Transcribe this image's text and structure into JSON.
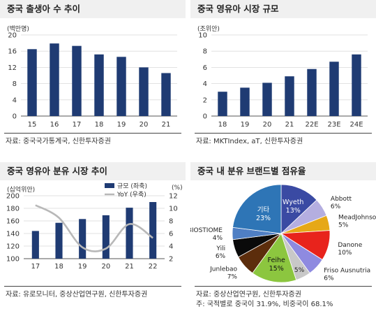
{
  "panels": {
    "births": {
      "title": "중국 출생아 수 추이",
      "unit": "(백만명)",
      "source": "자료: 중국국가통계국, 신한투자증권"
    },
    "formula_market": {
      "title": "중국 영유아 시장 규모",
      "unit": "(조위안)",
      "source": "자료: MKTIndex, aT, 신한투자증권"
    },
    "powder_market": {
      "title": "중국 영유아 분유 시장 추이",
      "unit_left": "(십억위안)",
      "unit_right": "(%)",
      "legend_bar": "규모 (좌축)",
      "legend_line": "YoY (우축)",
      "source": "자료: 유로모니터, 중상산업연구원, 신한투자증권"
    },
    "brand_share": {
      "title": "중국 내 분유 브랜드별 점유율",
      "source": "자료: 중상산업연구원, 신한투자증권",
      "note": "주: 국적별로 중국이 31.9%, 비중국이 68.1%"
    }
  },
  "chart_data": [
    {
      "type": "bar",
      "id": "births",
      "categories": [
        "15",
        "16",
        "17",
        "18",
        "19",
        "20",
        "21"
      ],
      "values": [
        16.5,
        17.9,
        17.3,
        15.2,
        14.6,
        12.0,
        10.6
      ],
      "ylim": [
        0,
        20
      ],
      "yticks": [
        0,
        4,
        8,
        12,
        16,
        20
      ],
      "color": "#1f3b73"
    },
    {
      "type": "bar",
      "id": "formula_market",
      "categories": [
        "18",
        "19",
        "20",
        "21",
        "22E",
        "23E",
        "24E"
      ],
      "values": [
        3.0,
        3.5,
        4.1,
        4.9,
        5.8,
        6.7,
        7.6
      ],
      "ylim": [
        0,
        10
      ],
      "yticks": [
        0,
        2,
        4,
        6,
        8,
        10
      ],
      "color": "#1f3b73"
    },
    {
      "type": "bar",
      "id": "powder_market",
      "categories": [
        "17",
        "18",
        "19",
        "20",
        "21",
        "22"
      ],
      "series": [
        {
          "name": "규모 (좌축)",
          "axis": "left",
          "values": [
            144,
            157,
            163,
            169,
            181,
            190
          ],
          "color": "#1f3b73"
        },
        {
          "name": "YoY (우축)",
          "axis": "right",
          "kind": "line",
          "values": [
            10.5,
            8.5,
            3.8,
            3.6,
            7.5,
            5.3
          ],
          "color": "#b8b8b8"
        }
      ],
      "ylim_left": [
        100,
        200
      ],
      "yticks_left": [
        100,
        120,
        140,
        160,
        180,
        200
      ],
      "ylim_right": [
        2,
        12
      ],
      "yticks_right": [
        2,
        4,
        6,
        8,
        10,
        12
      ]
    },
    {
      "type": "pie",
      "id": "brand_share",
      "slices": [
        {
          "label": "Wyeth",
          "value": 13,
          "text": "13%",
          "color": "#3a4aa3"
        },
        {
          "label": "Abbott",
          "value": 6,
          "text": "6%",
          "color": "#b4aee0"
        },
        {
          "label": "MeadJohnson",
          "value": 5,
          "text": "5%",
          "color": "#e6a817"
        },
        {
          "label": "Danone",
          "value": 10,
          "text": "10%",
          "color": "#e8231c"
        },
        {
          "label": "Friso Ausnutria",
          "value": 6,
          "text": "6%",
          "color": "#8e8ae0"
        },
        {
          "label": "",
          "value": 5,
          "text": "5%",
          "color": "#c8c8c8"
        },
        {
          "label": "Feihe",
          "value": 15,
          "text": "15%",
          "color": "#8cc63f"
        },
        {
          "label": "Junlebao",
          "value": 7,
          "text": "7%",
          "color": "#5c2d0c"
        },
        {
          "label": "Yili",
          "value": 6,
          "text": "6%",
          "color": "#0a0a0a"
        },
        {
          "label": "BIOSTIOME",
          "value": 4,
          "text": "4%",
          "color": "#4f7fc4"
        },
        {
          "label": "기타",
          "value": 23,
          "text": "23%",
          "color": "#2e75b6"
        }
      ]
    }
  ]
}
